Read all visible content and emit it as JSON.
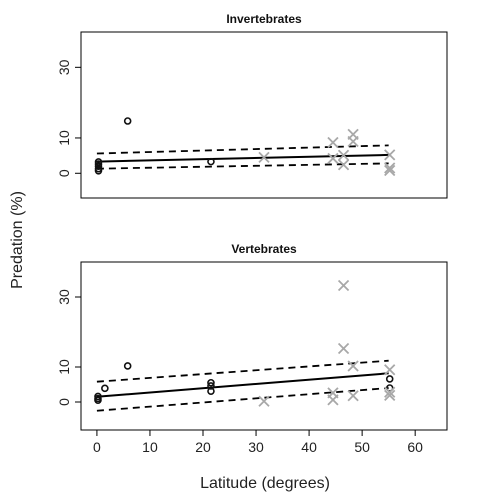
{
  "shared": {
    "ylabel": "Predation (%)",
    "xlabel": "Latitude (degrees)",
    "x_ticks": [
      0,
      10,
      20,
      30,
      40,
      50,
      60
    ]
  },
  "colors": {
    "circle": "#111111",
    "cross": "#a8a8a8",
    "line": "#000000"
  },
  "chart_data": [
    {
      "type": "scatter",
      "title": "Invertebrates",
      "xlim": [
        -3,
        66
      ],
      "ylim": [
        -7,
        40
      ],
      "y_ticks": [
        0,
        10,
        30
      ],
      "series": [
        {
          "marker": "circle",
          "points": [
            [
              0.3,
              0.7
            ],
            [
              0.3,
              1.3
            ],
            [
              0.3,
              2
            ],
            [
              0.3,
              2.6
            ],
            [
              0.3,
              3.2
            ],
            [
              5.8,
              14.8
            ],
            [
              21.5,
              3.3
            ]
          ]
        },
        {
          "marker": "cross",
          "points": [
            [
              31.5,
              4.5
            ],
            [
              44.5,
              8.7
            ],
            [
              44.5,
              4.2
            ],
            [
              46.5,
              5.1
            ],
            [
              46.5,
              2.4
            ],
            [
              48.3,
              11
            ],
            [
              48.3,
              9
            ],
            [
              55.2,
              5.2
            ],
            [
              55.2,
              1.5
            ],
            [
              55.2,
              0.8
            ]
          ]
        }
      ],
      "fit": {
        "x": [
          0,
          55
        ],
        "y": [
          3.3,
          5.2
        ],
        "ci_upper": [
          5.6,
          7.9
        ],
        "ci_lower": [
          1.3,
          2.8
        ]
      }
    },
    {
      "type": "scatter",
      "title": "Vertebrates",
      "xlim": [
        -3,
        66
      ],
      "ylim": [
        -8,
        40
      ],
      "y_ticks": [
        0,
        10,
        30
      ],
      "series": [
        {
          "marker": "circle",
          "points": [
            [
              0.2,
              0.5
            ],
            [
              0.2,
              1
            ],
            [
              0.2,
              1.6
            ],
            [
              1.5,
              3.9
            ],
            [
              5.8,
              10.3
            ],
            [
              21.5,
              3.1
            ],
            [
              21.5,
              4.6
            ],
            [
              21.5,
              5.5
            ],
            [
              55.2,
              4
            ],
            [
              55.2,
              6.6
            ]
          ]
        },
        {
          "marker": "cross",
          "points": [
            [
              31.5,
              0.2
            ],
            [
              44.5,
              0.6
            ],
            [
              44.5,
              2.6
            ],
            [
              46.5,
              33.3
            ],
            [
              46.5,
              15.3
            ],
            [
              48.3,
              1.8
            ],
            [
              48.3,
              10.3
            ],
            [
              55.2,
              9.2
            ],
            [
              55.2,
              2.8
            ],
            [
              55.2,
              1.9
            ]
          ]
        }
      ],
      "fit": {
        "x": [
          0,
          55
        ],
        "y": [
          1.5,
          8.2
        ],
        "ci_upper": [
          5.8,
          11.8
        ],
        "ci_lower": [
          -2.5,
          4.0
        ]
      }
    }
  ]
}
